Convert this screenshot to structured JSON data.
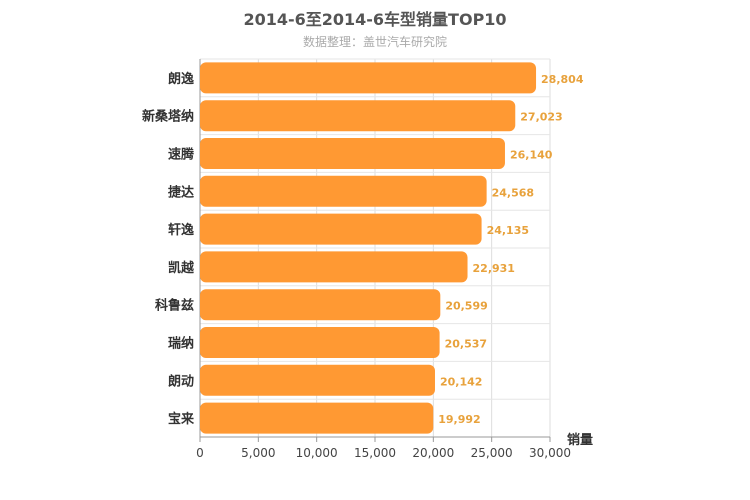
{
  "chart_data": {
    "type": "bar",
    "orientation": "horizontal",
    "title": "2014-6至2014-6车型销量TOP10",
    "subtitle": "数据整理：盖世汽车研究院",
    "xlabel": "销量",
    "ylabel": "",
    "xlim": [
      0,
      30000
    ],
    "ticks": [
      "0",
      "5,000",
      "10,000",
      "15,000",
      "20,000",
      "25,000",
      "30,000"
    ],
    "grid": true,
    "legend": "none",
    "categories": [
      "朗逸",
      "新桑塔纳",
      "速腾",
      "捷达",
      "轩逸",
      "凯越",
      "科鲁兹",
      "瑞纳",
      "朗动",
      "宝来"
    ],
    "values": [
      28804,
      27023,
      26140,
      24568,
      24135,
      22931,
      20599,
      20537,
      20142,
      19992
    ],
    "value_labels": [
      "28,804",
      "27,023",
      "26,140",
      "24,568",
      "24,135",
      "22,931",
      "20,599",
      "20,537",
      "20,142",
      "19,992"
    ],
    "bar_color": "#ff9933",
    "label_color": "#e8a23c"
  }
}
